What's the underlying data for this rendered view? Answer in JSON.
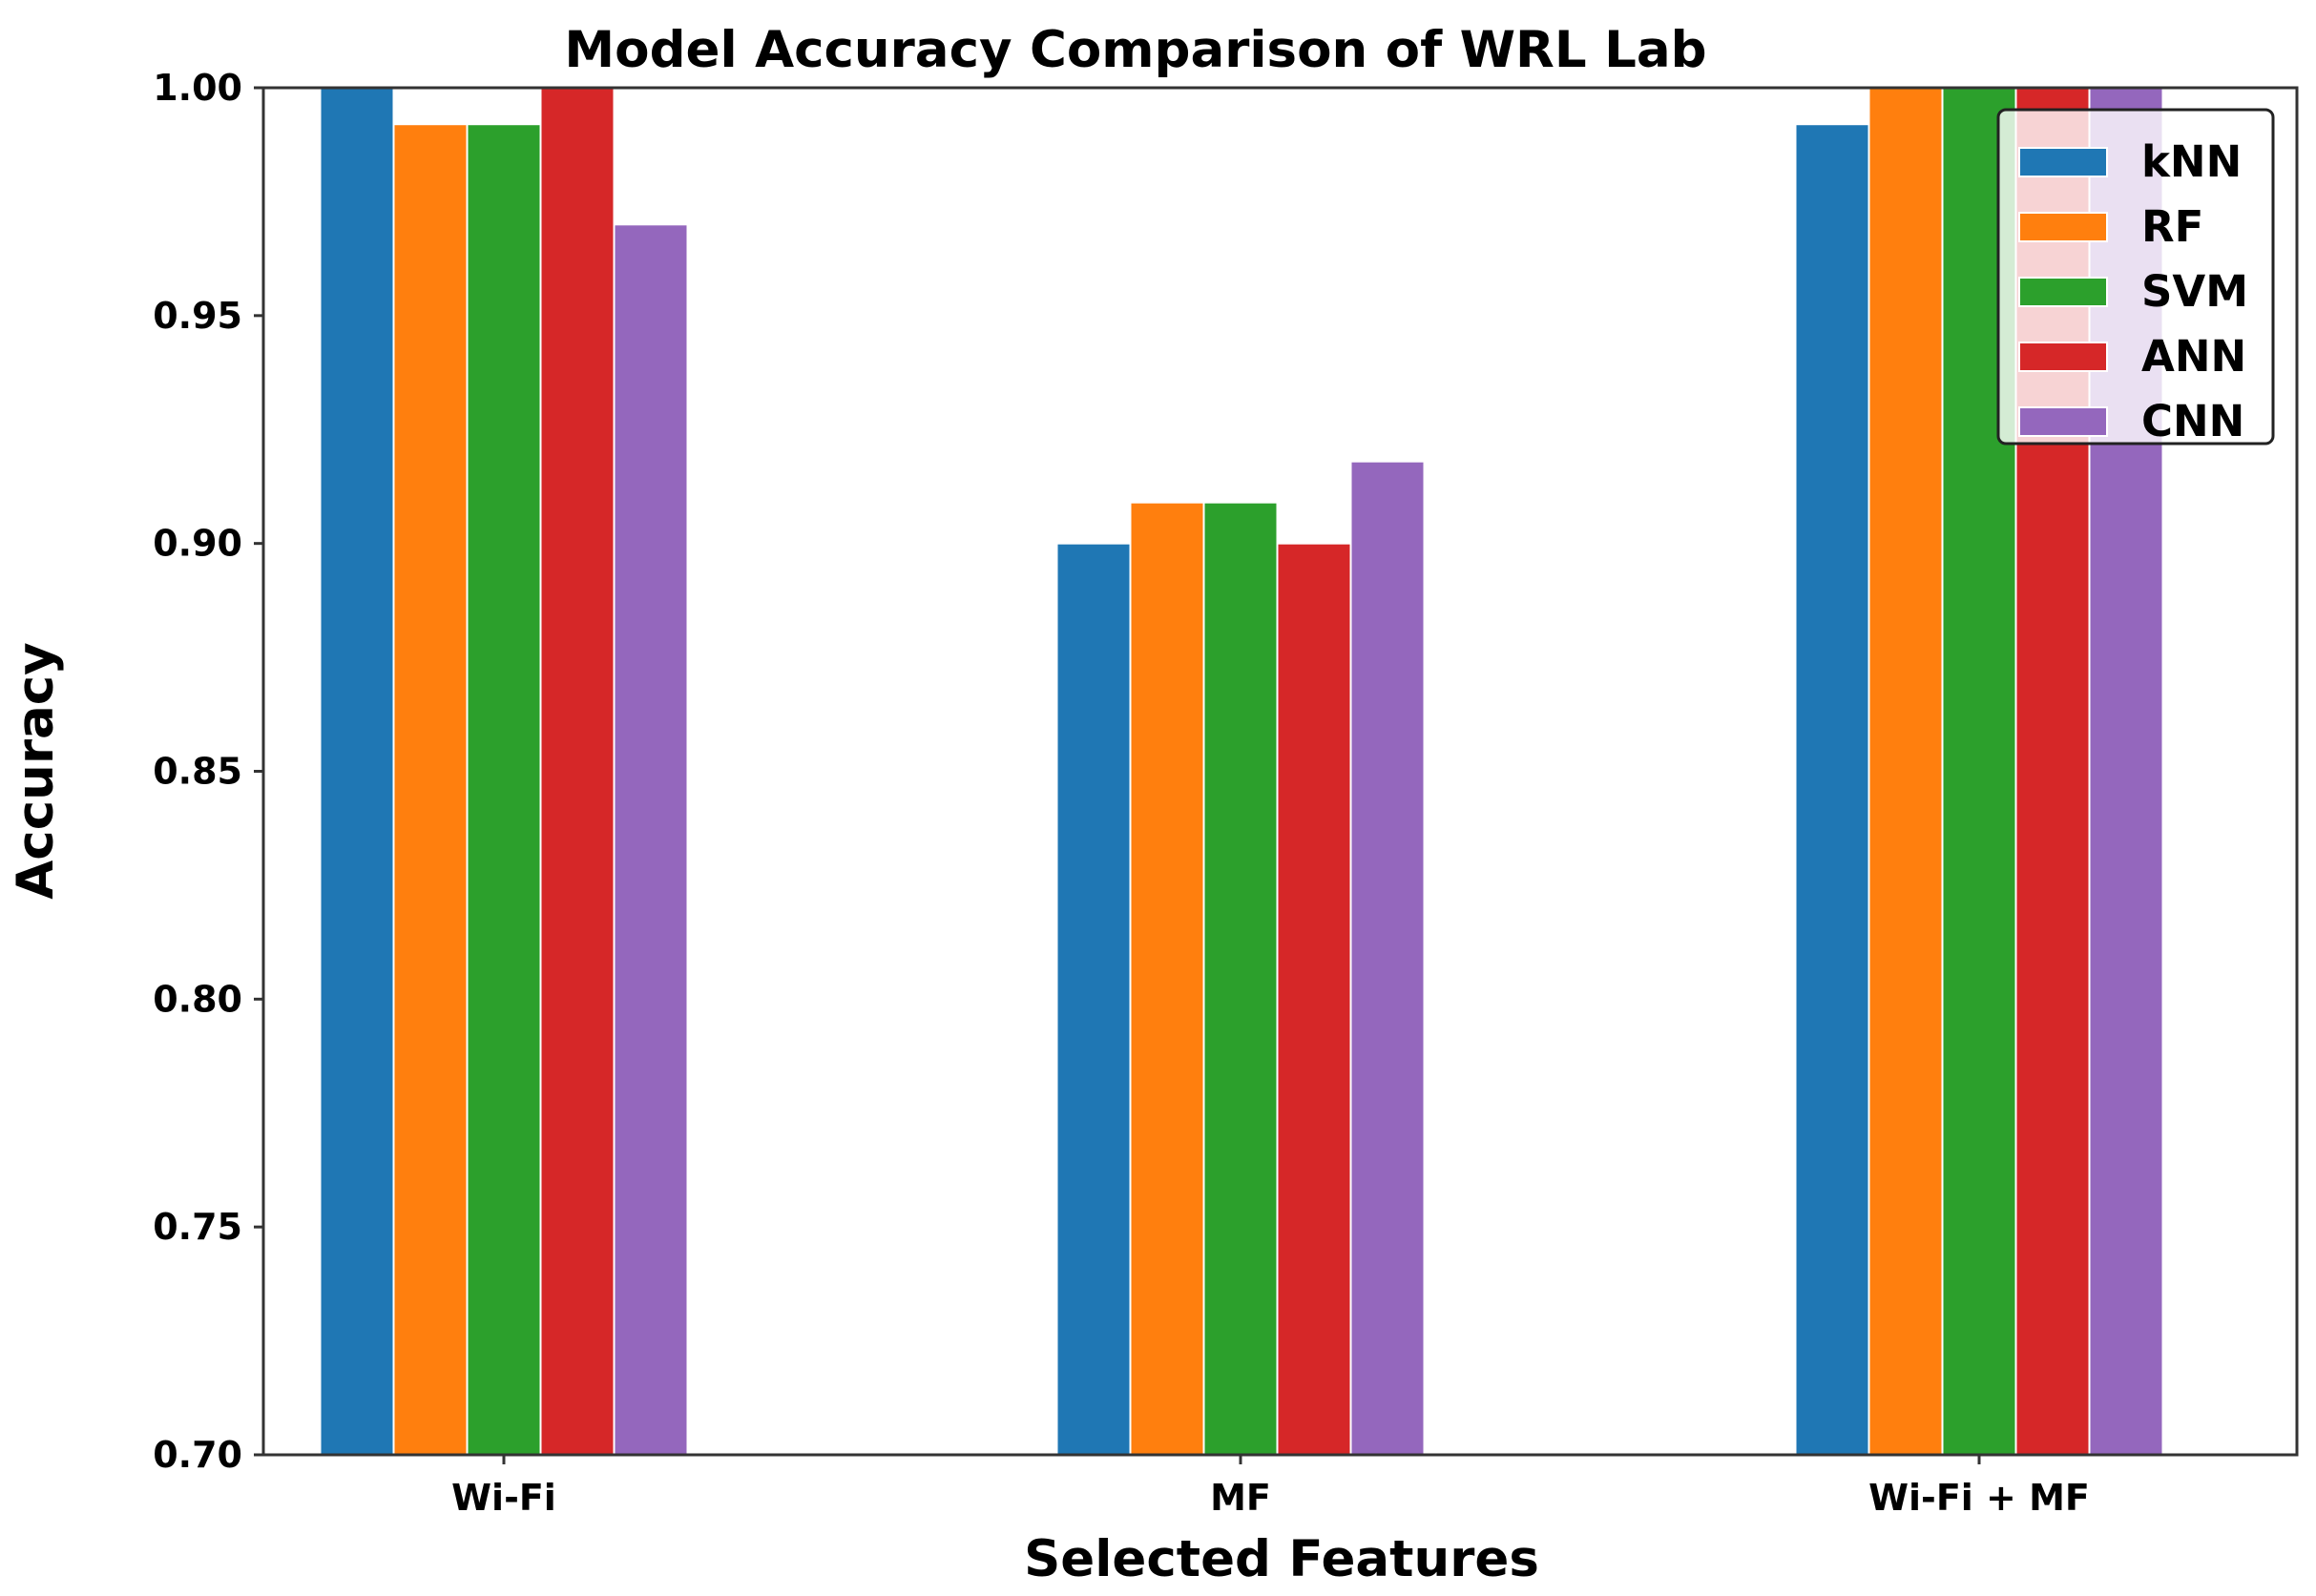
{
  "chart_data": {
    "type": "bar",
    "title": "Model Accuracy Comparison of WRL Lab",
    "xlabel": "Selected Features",
    "ylabel": "Accuracy",
    "categories": [
      "Wi-Fi",
      "MF",
      "Wi-Fi + MF"
    ],
    "ylim": [
      0.7,
      1.0
    ],
    "yticks": [
      "0.70",
      "0.75",
      "0.80",
      "0.85",
      "0.90",
      "0.95",
      "1.00"
    ],
    "grid": false,
    "legend_position": "upper right",
    "series": [
      {
        "name": "kNN",
        "color": "#1f77b4",
        "values": [
          1.0,
          0.9,
          0.992
        ]
      },
      {
        "name": "RF",
        "color": "#ff7f0e",
        "values": [
          0.992,
          0.909,
          1.0
        ]
      },
      {
        "name": "SVM",
        "color": "#2ca02c",
        "values": [
          0.992,
          0.909,
          1.0
        ]
      },
      {
        "name": "ANN",
        "color": "#d62728",
        "values": [
          1.0,
          0.9,
          1.0
        ]
      },
      {
        "name": "CNN",
        "color": "#9467bd",
        "values": [
          0.97,
          0.918,
          1.0
        ]
      }
    ]
  }
}
